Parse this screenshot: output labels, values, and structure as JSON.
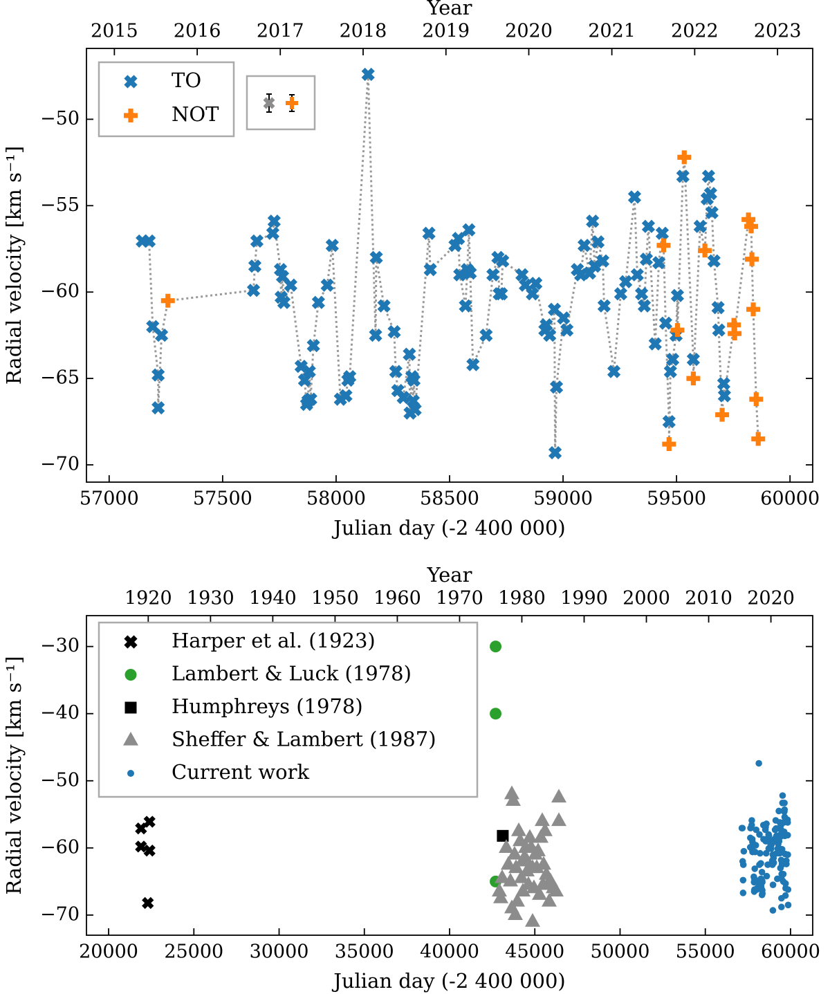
{
  "chart_data": [
    {
      "type": "scatter",
      "xlabel": "Julian day (-2 400 000)",
      "ylabel": "Radial velocity [km s⁻¹]",
      "x2label": "Year",
      "xlim": [
        56900,
        60100
      ],
      "ylim": [
        -71,
        -45.9
      ],
      "xticks": [
        57000,
        57500,
        58000,
        58500,
        59000,
        59500,
        60000
      ],
      "yticks": [
        {
          "value": -70,
          "label": "−70"
        },
        {
          "value": -65,
          "label": "−65"
        },
        {
          "value": -60,
          "label": "−60"
        },
        {
          "value": -55,
          "label": "−55"
        },
        {
          "value": -50,
          "label": "−50"
        }
      ],
      "x2ticks": [
        {
          "value": 57023,
          "label": "2015"
        },
        {
          "value": 57388,
          "label": "2016"
        },
        {
          "value": 57754,
          "label": "2017"
        },
        {
          "value": 58119,
          "label": "2018"
        },
        {
          "value": 58484,
          "label": "2019"
        },
        {
          "value": 58849,
          "label": "2020"
        },
        {
          "value": 59215,
          "label": "2021"
        },
        {
          "value": 59580,
          "label": "2022"
        },
        {
          "value": 59945,
          "label": "2023"
        }
      ],
      "connect_line": {
        "color": "#999999",
        "style": "dotted"
      },
      "legend": "upper left",
      "series": [
        {
          "name": "TO",
          "color": "#1f77b4",
          "marker": "X",
          "x": [
            57146,
            57176,
            57192,
            57216,
            57216,
            57231,
            57636,
            57642,
            57651,
            57721,
            57727,
            57755,
            57758,
            57764,
            57770,
            57800,
            57846,
            57861,
            57870,
            57876,
            57882,
            57888,
            57900,
            57922,
            57961,
            57983,
            58019,
            58043,
            58052,
            58060,
            58141,
            58174,
            58177,
            58211,
            58256,
            58263,
            58272,
            58296,
            58323,
            58326,
            58334,
            58340,
            58343,
            58348,
            58409,
            58415,
            58524,
            58539,
            58545,
            58570,
            58578,
            58585,
            58591,
            58603,
            58661,
            58691,
            58713,
            58719,
            58728,
            58734,
            58819,
            58834,
            58865,
            58880,
            58920,
            58926,
            58941,
            58962,
            58965,
            58971,
            59002,
            59017,
            59063,
            59078,
            59093,
            59117,
            59130,
            59139,
            59154,
            59175,
            59181,
            59224,
            59254,
            59276,
            59315,
            59327,
            59346,
            59358,
            59367,
            59376,
            59406,
            59422,
            59437,
            59452,
            59467,
            59473,
            59483,
            59498,
            59504,
            59528,
            59574,
            59604,
            59635,
            59641,
            59650,
            59656,
            59665,
            59683,
            59686,
            59708,
            59711
          ],
          "values": [
            -57.05,
            -57.05,
            -62.0,
            -64.8,
            -66.7,
            -62.5,
            -59.9,
            -58.5,
            -57.05,
            -56.6,
            -55.9,
            -58.7,
            -60.3,
            -59.1,
            -60.6,
            -59.6,
            -64.3,
            -65.1,
            -66.5,
            -66.3,
            -64.6,
            -66.2,
            -63.1,
            -60.6,
            -59.6,
            -57.3,
            -66.2,
            -66.0,
            -65.1,
            -64.9,
            -47.4,
            -62.5,
            -58.0,
            -60.8,
            -62.3,
            -64.6,
            -65.7,
            -66.1,
            -63.6,
            -67.0,
            -64.9,
            -66.3,
            -65.1,
            -66.8,
            -56.6,
            -58.7,
            -57.3,
            -56.9,
            -59.0,
            -60.8,
            -58.7,
            -56.4,
            -58.9,
            -64.2,
            -62.5,
            -59.0,
            -58.0,
            -60.1,
            -60.1,
            -58.2,
            -59.0,
            -59.6,
            -60.1,
            -59.5,
            -62.2,
            -61.9,
            -62.5,
            -61.0,
            -69.3,
            -65.5,
            -61.5,
            -62.2,
            -58.7,
            -59.0,
            -57.3,
            -58.9,
            -55.9,
            -58.5,
            -57.1,
            -58.2,
            -60.8,
            -64.6,
            -60.1,
            -59.4,
            -54.5,
            -59.0,
            -60.1,
            -60.8,
            -58.1,
            -56.2,
            -63.0,
            -58.3,
            -56.6,
            -61.8,
            -67.5,
            -64.6,
            -63.9,
            -62.5,
            -60.2,
            -53.3,
            -63.9,
            -56.2,
            -54.6,
            -53.3,
            -54.3,
            -55.4,
            -58.2,
            -60.9,
            -62.2,
            -65.3,
            -66.0
          ]
        },
        {
          "name": "NOT",
          "color": "#ff7f0e",
          "marker": "P",
          "x": [
            57259,
            59443,
            59467,
            59504,
            59534,
            59574,
            59625,
            59701,
            59753,
            59756,
            59817,
            59829,
            59832,
            59838,
            59851,
            59860
          ],
          "values": [
            -60.5,
            -57.3,
            -68.8,
            -62.2,
            -52.2,
            -65.0,
            -57.6,
            -67.1,
            -61.9,
            -62.4,
            -55.8,
            -56.2,
            -58.1,
            -61.0,
            -66.2,
            -68.5
          ]
        }
      ]
    },
    {
      "type": "scatter",
      "xlabel": "Julian day (-2 400 000)",
      "ylabel": "Radial velocity [km s⁻¹]",
      "x2label": "Year",
      "xlim": [
        18700,
        61300
      ],
      "ylim": [
        -73,
        -25.4
      ],
      "xticks": [
        20000,
        25000,
        30000,
        35000,
        40000,
        45000,
        50000,
        55000,
        60000
      ],
      "yticks": [
        {
          "value": -70,
          "label": "−70"
        },
        {
          "value": -60,
          "label": "−60"
        },
        {
          "value": -50,
          "label": "−50"
        },
        {
          "value": -40,
          "label": "−40"
        },
        {
          "value": -30,
          "label": "−30"
        }
      ],
      "x2ticks": [
        {
          "value": 22324,
          "label": "1920"
        },
        {
          "value": 25977,
          "label": "1930"
        },
        {
          "value": 29629,
          "label": "1940"
        },
        {
          "value": 33282,
          "label": "1950"
        },
        {
          "value": 36934,
          "label": "1960"
        },
        {
          "value": 40587,
          "label": "1970"
        },
        {
          "value": 44239,
          "label": "1980"
        },
        {
          "value": 47892,
          "label": "1990"
        },
        {
          "value": 51544,
          "label": "2000"
        },
        {
          "value": 55197,
          "label": "2010"
        },
        {
          "value": 58849,
          "label": "2020"
        }
      ],
      "legend": "upper left",
      "series": [
        {
          "name": "Harper et al. (1923)",
          "color": "#000000",
          "marker": "X",
          "x": [
            21900,
            22400,
            21900,
            22400,
            22300
          ],
          "values": [
            -57.1,
            -56.1,
            -59.8,
            -60.4,
            -68.2
          ]
        },
        {
          "name": "Lambert & Luck (1978)",
          "color": "#2ca02c",
          "marker": "o",
          "x": [
            42700,
            42700,
            42700
          ],
          "values": [
            -30,
            -40,
            -65
          ]
        },
        {
          "name": "Humphreys (1978)",
          "color": "#000000",
          "marker": "s",
          "x": [
            43120
          ],
          "values": [
            -58.2
          ]
        },
        {
          "name": "Sheffer & Lambert (1987)",
          "color": "#8c8c8c",
          "marker": "^",
          "x": [
            42921,
            43002,
            43083,
            43327,
            43448,
            43570,
            43651,
            43732,
            43813,
            43854,
            43895,
            43976,
            44057,
            44138,
            44219,
            44300,
            44381,
            44462,
            44544,
            44544,
            44625,
            44706,
            44787,
            44868,
            44949,
            45030,
            45112,
            45193,
            45274,
            45355,
            45436,
            45517,
            45598,
            45680,
            45761,
            45842,
            45923,
            46085,
            46247,
            46410,
            46410,
            43651,
            44300,
            44868,
            45477
          ],
          "values": [
            -66.5,
            -67.5,
            -64.5,
            -60.0,
            -62.5,
            -65.0,
            -52.0,
            -53.0,
            -61.0,
            -70.0,
            -63.0,
            -68.0,
            -57.5,
            -59.0,
            -64.5,
            -66.5,
            -61.5,
            -60.0,
            -62.0,
            -63.5,
            -65.5,
            -58.5,
            -60.0,
            -71.0,
            -66.0,
            -61.0,
            -63.0,
            -60.5,
            -67.0,
            -58.5,
            -56.0,
            -62.5,
            -57.5,
            -64.0,
            -65.5,
            -68.0,
            -65.0,
            -66.0,
            -66.5,
            -52.5,
            -56.0,
            -69.0,
            -62.0,
            -63.0,
            -65.5
          ]
        },
        {
          "name": "Current work",
          "color": "#1f77b4",
          "marker": ".",
          "x": [
            57146,
            57176,
            57192,
            57216,
            57216,
            57231,
            57636,
            57642,
            57651,
            57721,
            57727,
            57755,
            57758,
            57764,
            57770,
            57800,
            57846,
            57861,
            57870,
            57876,
            57882,
            57888,
            57900,
            57922,
            57961,
            57983,
            58019,
            58043,
            58052,
            58060,
            58141,
            58174,
            58177,
            58211,
            58256,
            58263,
            58272,
            58296,
            58323,
            58326,
            58334,
            58340,
            58343,
            58348,
            58409,
            58415,
            58524,
            58539,
            58545,
            58570,
            58578,
            58585,
            58591,
            58603,
            58661,
            58691,
            58713,
            58719,
            58728,
            58734,
            58819,
            58834,
            58865,
            58880,
            58920,
            58926,
            58941,
            58962,
            58965,
            58971,
            59002,
            59017,
            59063,
            59078,
            59093,
            59117,
            59130,
            59139,
            59154,
            59175,
            59181,
            59224,
            59254,
            59276,
            59315,
            59327,
            59346,
            59358,
            59367,
            59376,
            59406,
            59422,
            59437,
            59452,
            59467,
            59473,
            59483,
            59498,
            59504,
            59528,
            59574,
            59604,
            59635,
            59641,
            59650,
            59656,
            59665,
            59683,
            59686,
            59708,
            59711,
            57259,
            59443,
            59467,
            59504,
            59534,
            59574,
            59625,
            59701,
            59753,
            59756,
            59817,
            59829,
            59832,
            59838,
            59851,
            59860
          ],
          "values": [
            -57.05,
            -57.05,
            -62.0,
            -64.8,
            -66.7,
            -62.5,
            -59.9,
            -58.5,
            -57.05,
            -56.6,
            -55.9,
            -58.7,
            -60.3,
            -59.1,
            -60.6,
            -59.6,
            -64.3,
            -65.1,
            -66.5,
            -66.3,
            -64.6,
            -66.2,
            -63.1,
            -60.6,
            -59.6,
            -57.3,
            -66.2,
            -66.0,
            -65.1,
            -64.9,
            -47.4,
            -62.5,
            -58.0,
            -60.8,
            -62.3,
            -64.6,
            -65.7,
            -66.1,
            -63.6,
            -67.0,
            -64.9,
            -66.3,
            -65.1,
            -66.8,
            -56.6,
            -58.7,
            -57.3,
            -56.9,
            -59.0,
            -60.8,
            -58.7,
            -56.4,
            -58.9,
            -64.2,
            -62.5,
            -59.0,
            -58.0,
            -60.1,
            -60.1,
            -58.2,
            -59.0,
            -59.6,
            -60.1,
            -59.5,
            -62.2,
            -61.9,
            -62.5,
            -61.0,
            -69.3,
            -65.5,
            -61.5,
            -62.2,
            -58.7,
            -59.0,
            -57.3,
            -58.9,
            -55.9,
            -58.5,
            -57.1,
            -58.2,
            -60.8,
            -64.6,
            -60.1,
            -59.4,
            -54.5,
            -59.0,
            -60.1,
            -60.8,
            -58.1,
            -56.2,
            -63.0,
            -58.3,
            -56.6,
            -61.8,
            -67.5,
            -64.6,
            -63.9,
            -62.5,
            -60.2,
            -53.3,
            -63.9,
            -56.2,
            -54.6,
            -53.3,
            -54.3,
            -55.4,
            -58.2,
            -60.9,
            -62.2,
            -65.3,
            -66.0,
            -60.5,
            -57.3,
            -68.8,
            -62.2,
            -52.2,
            -65.0,
            -57.6,
            -67.1,
            -61.9,
            -62.4,
            -55.8,
            -56.2,
            -58.1,
            -61.0,
            -66.2,
            -68.5
          ]
        }
      ]
    }
  ]
}
